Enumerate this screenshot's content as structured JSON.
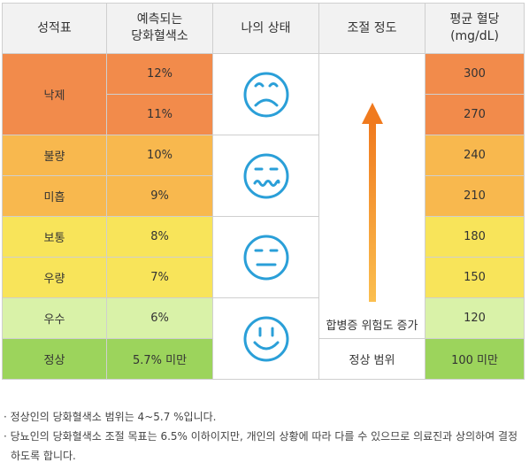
{
  "headers": {
    "grade": "성적표",
    "predicted_a1c_l1": "예측되는",
    "predicted_a1c_l2": "당화혈색소",
    "status": "나의 상태",
    "control": "조절 정도",
    "avg_glucose_l1": "평균 혈당",
    "avg_glucose_l2": "(mg/dL)"
  },
  "rows": [
    {
      "grade": "낙제",
      "a1c": "12%",
      "glucose": "300"
    },
    {
      "grade": "",
      "a1c": "11%",
      "glucose": "270"
    },
    {
      "grade": "불량",
      "a1c": "10%",
      "glucose": "240"
    },
    {
      "grade": "미흡",
      "a1c": "9%",
      "glucose": "210"
    },
    {
      "grade": "보통",
      "a1c": "8%",
      "glucose": "180"
    },
    {
      "grade": "우량",
      "a1c": "7%",
      "glucose": "150"
    },
    {
      "grade": "우수",
      "a1c": "6%",
      "glucose": "120"
    },
    {
      "grade": "정상",
      "a1c": "5.7% 미만",
      "glucose": "100 미만"
    }
  ],
  "faces": [
    "sad-face-icon",
    "wavy-mouth-face-icon",
    "neutral-face-icon",
    "smile-face-icon"
  ],
  "arrow_label": "합병증 위험도 증가",
  "normal_range_label": "정상 범위",
  "colors": {
    "fail": "#f28b4b",
    "poor": "#f8b84e",
    "fair": "#f8e45a",
    "good": "#d9f2a8",
    "normal": "#9cd45c",
    "arrow": "#f07a1e",
    "face": "#2a9fd8"
  },
  "notes": [
    "· 정상인의 당화혈색소 범위는 4~5.7 %입니다.",
    "· 당뇨인의 당화혈색소 조절 목표는 6.5% 이하이지만, 개인의 상황에 따라 다를 수 있으므로 의료진과 상의하여 결정하도록 합니다."
  ]
}
